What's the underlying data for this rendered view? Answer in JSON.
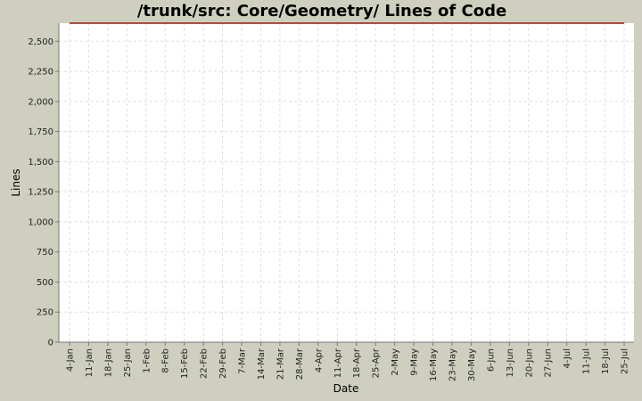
{
  "chart_data": {
    "type": "line",
    "title": "/trunk/src: Core/Geometry/ Lines of Code",
    "xlabel": "Date",
    "ylabel": "Lines",
    "ylim": [
      0,
      2650
    ],
    "y_ticks": [
      0,
      250,
      500,
      750,
      1000,
      1250,
      1500,
      1750,
      2000,
      2250,
      2500
    ],
    "y_tick_labels": [
      "0",
      "250",
      "500",
      "750",
      "1,000",
      "1,250",
      "1,500",
      "1,750",
      "2,000",
      "2,250",
      "2,500"
    ],
    "x_tick_labels": [
      "4-Jan",
      "11-Jan",
      "18-Jan",
      "25-Jan",
      "1-Feb",
      "8-Feb",
      "15-Feb",
      "22-Feb",
      "29-Feb",
      "7-Mar",
      "14-Mar",
      "21-Mar",
      "28-Mar",
      "4-Apr",
      "11-Apr",
      "18-Apr",
      "25-Apr",
      "2-May",
      "9-May",
      "16-May",
      "23-May",
      "30-May",
      "6-Jun",
      "13-Jun",
      "20-Jun",
      "27-Jun",
      "4-Jul",
      "11-Jul",
      "18-Jul",
      "25-Jul"
    ],
    "x_range": [
      "4-Jan",
      "25-Jul"
    ],
    "grid": true,
    "series": [
      {
        "color": "#cc0000",
        "x": [
          "4-Jan",
          "25-Jul"
        ],
        "values": [
          2650,
          2650
        ]
      }
    ],
    "colors": {
      "background": "#cfcfbf",
      "plot_background": "#ffffff",
      "line": "#cc0000"
    }
  }
}
